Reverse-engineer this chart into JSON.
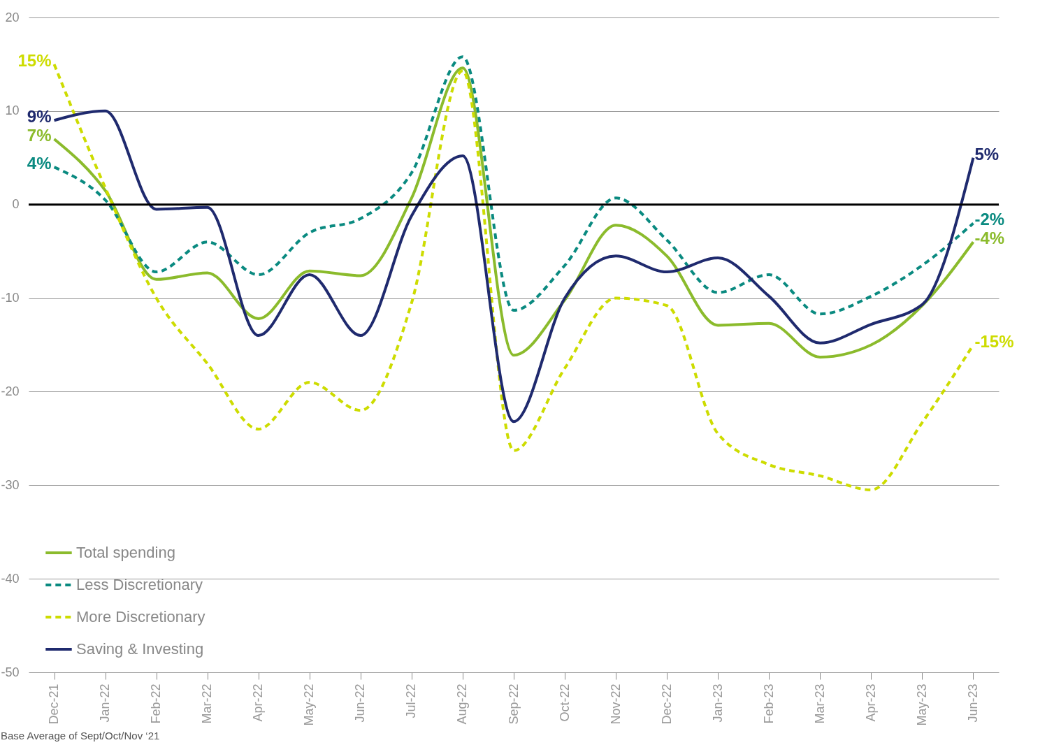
{
  "chart_data": {
    "type": "line",
    "categories": [
      "Dec-21",
      "Jan-22",
      "Feb-22",
      "Mar-22",
      "Apr-22",
      "May-22",
      "Jun-22",
      "Jul-22",
      "Aug-22",
      "Sep-22",
      "Oct-22",
      "Nov-22",
      "Dec-22",
      "Jan-23",
      "Feb-23",
      "Mar-23",
      "Apr-23",
      "May-23",
      "Jun-23"
    ],
    "series": [
      {
        "name": "Total spending",
        "color": "#8bbb2c",
        "line_style": "solid",
        "values": [
          7,
          1.5,
          -8,
          -7.3,
          -12.2,
          -7.1,
          -7.6,
          0.7,
          14.6,
          -16.1,
          -10.2,
          -2.2,
          -5.5,
          -12.9,
          -12.7,
          -16.3,
          -15,
          -10.8,
          -4
        ],
        "value_labels": [
          "7%",
          null,
          null,
          null,
          null,
          null,
          null,
          null,
          null,
          null,
          null,
          null,
          null,
          null,
          null,
          null,
          null,
          null,
          "-4%"
        ]
      },
      {
        "name": "Less Discretionary",
        "color": "#0a8a80",
        "line_style": "dashed",
        "values": [
          4,
          0.5,
          -7.2,
          -4,
          -7.5,
          -3,
          -1.5,
          3.4,
          15.8,
          -11.3,
          -6.5,
          0.7,
          -3.8,
          -9.4,
          -7.5,
          -11.7,
          -9.8,
          -6.5,
          -2
        ],
        "value_labels": [
          "4%",
          null,
          null,
          null,
          null,
          null,
          null,
          null,
          null,
          null,
          null,
          null,
          null,
          null,
          null,
          null,
          null,
          null,
          "-2%"
        ]
      },
      {
        "name": "More Discretionary",
        "color": "#cddc00",
        "line_style": "dashed",
        "values": [
          15,
          1.8,
          -10,
          -17,
          -24,
          -19,
          -22,
          -10.5,
          14.3,
          -26.3,
          -17.5,
          -10,
          -10.8,
          -24.5,
          -27.8,
          -29,
          -30.5,
          -23.3,
          -15
        ],
        "value_labels": [
          "15%",
          null,
          null,
          null,
          null,
          null,
          null,
          null,
          null,
          null,
          null,
          null,
          null,
          null,
          null,
          null,
          null,
          null,
          "-15%"
        ]
      },
      {
        "name": "Saving & Investing",
        "color": "#1f2a6e",
        "line_style": "solid",
        "values": [
          9,
          10,
          -0.5,
          -0.3,
          -14,
          -7.5,
          -14,
          -1.2,
          5.2,
          -23.2,
          -10,
          -5.5,
          -7.2,
          -5.7,
          -9.8,
          -14.8,
          -12.8,
          -10.7,
          5
        ],
        "value_labels": [
          "9%",
          null,
          null,
          null,
          null,
          null,
          null,
          null,
          null,
          null,
          null,
          null,
          null,
          null,
          null,
          null,
          null,
          null,
          "5%"
        ]
      }
    ],
    "ylim": [
      -50,
      20
    ],
    "yticks": [
      -50,
      -40,
      -30,
      -20,
      -10,
      0,
      10,
      20
    ],
    "grid": "y",
    "legend": "bottom left",
    "ref_lines": [
      {
        "axis": "y",
        "value": 0,
        "color": "#000000"
      }
    ],
    "annotations": [
      "Base Average of Sept/Oct/Nov ‘21"
    ]
  }
}
